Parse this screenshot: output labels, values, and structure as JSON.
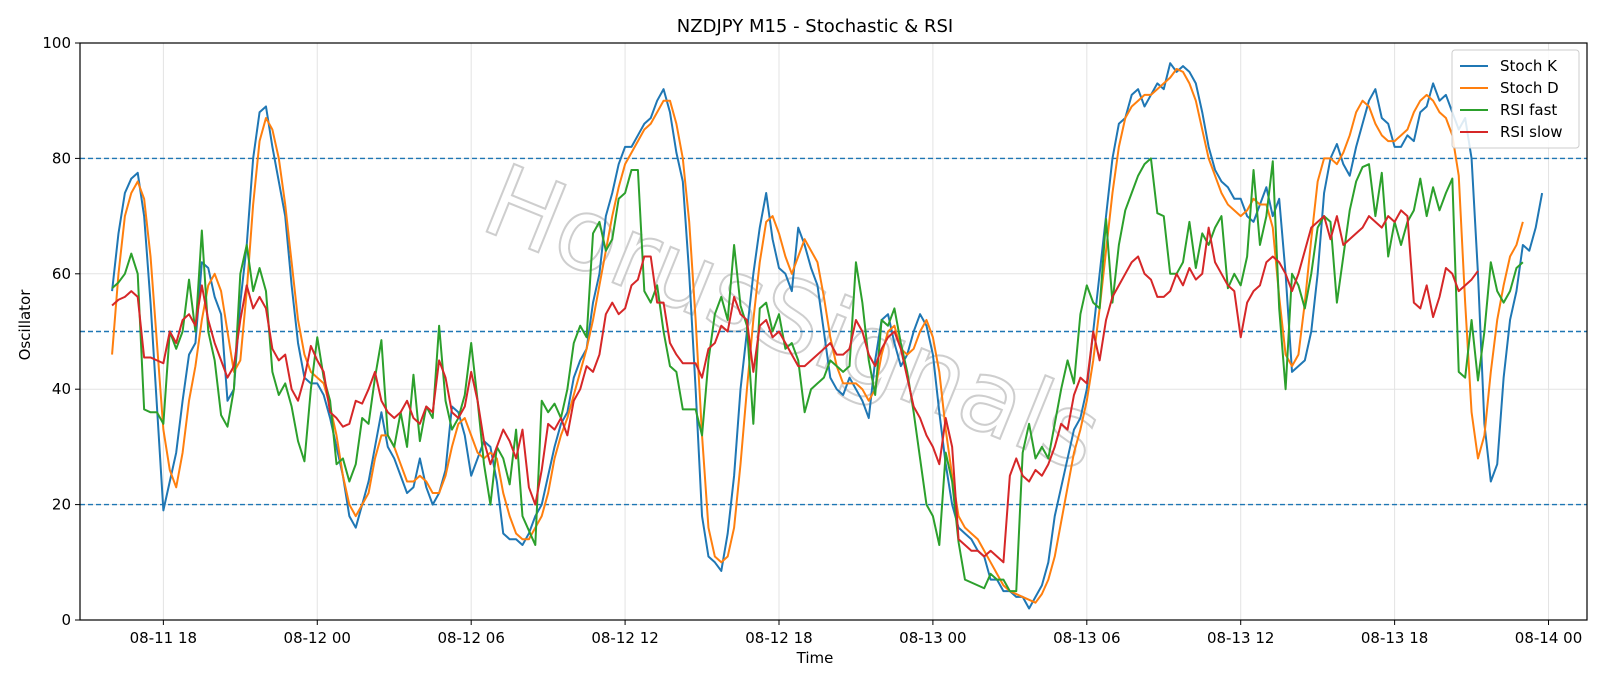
{
  "chart_data": {
    "type": "line",
    "title": "NZDJPY M15 - Stochastic & RSI",
    "xlabel": "Time",
    "ylabel": "Oscillator",
    "ylim": [
      0,
      100
    ],
    "xlim": [
      "08-11 14:45",
      "08-14 01:30"
    ],
    "yticks": [
      0,
      20,
      40,
      60,
      80,
      100
    ],
    "xticks": [
      "08-11 18",
      "08-12 00",
      "08-12 06",
      "08-12 12",
      "08-12 18",
      "08-13 00",
      "08-13 06",
      "08-13 12",
      "08-13 18",
      "08-14 00"
    ],
    "reference_lines": [
      20,
      50,
      80
    ],
    "grid": true,
    "legend_position": "top-right",
    "watermark": "HorusSignals",
    "x_start": "08-11 16:00",
    "x_step_minutes": 15,
    "series": [
      {
        "name": "Stoch K",
        "color": "#1f77b4",
        "values": [
          57,
          67,
          74,
          76.5,
          77.5,
          70,
          55,
          37,
          19,
          24,
          29,
          38,
          46,
          48,
          62,
          61,
          56,
          53,
          38,
          40,
          55,
          65,
          80,
          88,
          89,
          82,
          76,
          70,
          58,
          48,
          42,
          41,
          41,
          39,
          35,
          30,
          25,
          18,
          16,
          20,
          24,
          30,
          36,
          30,
          28,
          25,
          22,
          23,
          28,
          23,
          20,
          22,
          26,
          37,
          36,
          32,
          25,
          28,
          31,
          30,
          24,
          15,
          14,
          14,
          13,
          15,
          18,
          20,
          25,
          30,
          34,
          36,
          42,
          45,
          47,
          55,
          60,
          70,
          74,
          79,
          82,
          82,
          84,
          86,
          87,
          90,
          92,
          88,
          81,
          76,
          60,
          40,
          18,
          11,
          10,
          8.5,
          15,
          25,
          40,
          50,
          60,
          68,
          74,
          66,
          61,
          60,
          57,
          68,
          65,
          61,
          58,
          50,
          42,
          40,
          39,
          42,
          40,
          38,
          35,
          45,
          52,
          53,
          48,
          44,
          46,
          50,
          53,
          51,
          46,
          36,
          27,
          20,
          16,
          15,
          14,
          12,
          11,
          7,
          7,
          5,
          5,
          4,
          4,
          2,
          4,
          6,
          10,
          18,
          23,
          28,
          33,
          35,
          40,
          50,
          60,
          70,
          80,
          86,
          87,
          91,
          92,
          89,
          91,
          93,
          92,
          96.5,
          95,
          96,
          95,
          93,
          88,
          82,
          78,
          76,
          75,
          73,
          73,
          70,
          69,
          72,
          75,
          70,
          73,
          60,
          43,
          44,
          45,
          50,
          60,
          74,
          80,
          82.5,
          79,
          77,
          82,
          86,
          90,
          92,
          87,
          86,
          82,
          82,
          84,
          83,
          88,
          89,
          93,
          90,
          91,
          88,
          85,
          87,
          80,
          60,
          34,
          24,
          27,
          42,
          52,
          57,
          65,
          64,
          68,
          74
        ]
      },
      {
        "name": "Stoch D",
        "color": "#ff7f0e",
        "values": [
          46,
          60,
          70,
          74,
          76,
          73,
          63,
          48,
          33,
          26,
          23,
          29,
          38,
          44,
          52,
          58,
          60,
          57,
          50,
          43,
          45,
          57,
          72,
          83,
          87,
          85,
          80,
          72,
          62,
          52,
          46,
          43,
          42,
          41,
          37,
          32,
          25,
          20,
          18,
          20,
          22,
          28,
          32,
          32,
          30,
          27,
          24,
          24,
          25,
          24,
          22,
          22,
          25,
          30,
          34,
          35,
          32,
          29,
          28,
          29,
          28,
          22,
          18,
          15,
          14,
          14,
          16,
          18,
          22,
          28,
          32,
          35,
          39,
          43,
          47,
          52,
          58,
          64,
          70,
          75,
          79,
          81,
          83,
          85,
          86,
          88,
          90,
          90,
          86,
          80,
          69,
          52,
          32,
          16,
          11,
          10,
          11,
          16,
          27,
          40,
          52,
          62,
          69,
          70,
          67,
          63,
          60,
          63,
          66,
          64,
          62,
          56,
          49,
          44,
          41,
          41,
          41,
          40,
          38,
          40,
          46,
          50,
          51,
          47,
          46,
          47,
          50,
          52,
          49,
          43,
          33,
          25,
          18,
          16,
          15,
          14,
          12,
          10,
          8,
          6,
          5,
          4.5,
          4,
          3.5,
          3,
          4.5,
          7,
          11,
          17,
          23,
          29,
          33,
          38,
          45,
          54,
          64,
          74,
          82,
          87,
          89,
          90,
          91,
          91,
          92,
          93,
          94,
          95.5,
          95,
          93,
          90,
          85,
          80,
          77,
          74,
          72,
          71,
          70,
          71,
          73,
          72,
          72,
          68,
          56,
          46,
          44,
          46,
          55,
          66,
          76,
          80,
          80,
          79,
          81,
          84,
          88,
          90,
          89,
          86,
          84,
          83,
          83,
          84,
          85,
          88,
          90,
          91,
          90,
          88,
          87,
          84,
          77,
          55,
          36,
          28,
          32,
          43,
          52,
          58,
          63,
          65,
          69
        ]
      },
      {
        "name": "RSI fast",
        "color": "#2ca02c",
        "values": [
          57.5,
          58.5,
          60,
          63.5,
          60,
          36.5,
          36,
          36,
          34,
          50,
          47,
          50,
          59,
          50,
          67.5,
          50,
          45,
          35.5,
          33.5,
          40,
          60,
          65,
          57,
          61,
          57,
          43,
          39,
          41,
          37,
          31,
          27.5,
          40,
          49,
          42,
          38,
          27,
          28,
          24,
          27,
          35,
          34,
          42,
          48.5,
          32,
          30,
          36,
          30,
          42.5,
          31,
          37,
          35,
          51,
          38,
          33,
          35,
          39,
          48,
          38,
          27,
          20,
          30,
          28,
          23.5,
          33,
          18,
          15.5,
          13,
          38,
          36,
          37.5,
          35,
          40,
          48,
          51,
          49,
          67,
          69,
          64,
          66,
          73,
          74,
          78,
          78,
          57,
          55,
          58,
          50,
          44,
          43,
          36.5,
          36.5,
          36.5,
          32,
          45,
          53,
          56,
          52,
          65,
          54.5,
          51,
          34,
          54,
          55,
          50,
          53,
          47,
          48,
          45,
          36,
          40,
          41,
          42,
          45,
          44,
          43,
          44,
          62,
          55,
          45,
          39,
          52,
          51,
          54,
          48,
          43,
          36,
          28,
          20,
          18,
          13,
          29,
          24,
          13.5,
          7,
          6.5,
          6,
          5.5,
          8,
          7,
          7,
          5,
          5,
          29,
          34,
          28,
          30,
          28,
          34,
          40,
          45,
          41,
          53,
          58,
          55,
          54,
          69.5,
          55,
          65,
          71,
          74,
          77,
          79,
          80,
          70.5,
          70,
          60,
          60,
          62,
          69,
          61,
          67,
          65,
          68,
          70,
          57.5,
          60,
          58,
          63,
          78,
          65,
          70,
          79.5,
          54,
          40,
          60,
          58,
          54,
          60,
          68,
          70,
          69,
          55,
          63,
          71,
          76,
          78.5,
          79,
          70,
          77.5,
          63,
          69,
          65,
          69,
          71,
          76.5,
          70,
          75,
          71,
          74,
          76.5,
          43,
          42,
          52,
          41.5,
          50,
          62,
          57,
          55,
          57,
          61,
          62
        ]
      },
      {
        "name": "RSI slow",
        "color": "#d62728",
        "values": [
          54.5,
          55.5,
          56,
          57,
          56,
          45.5,
          45.5,
          45,
          44.5,
          50,
          48,
          52,
          53,
          51,
          58,
          52,
          48,
          45,
          42,
          44,
          52,
          58,
          54,
          56,
          54,
          47,
          45,
          46,
          40,
          38,
          42,
          47.5,
          45,
          43,
          36,
          35,
          33.5,
          34,
          38,
          37.5,
          40,
          43,
          38,
          36,
          35,
          36,
          38,
          35,
          34,
          37,
          36,
          45,
          42,
          36,
          35,
          37,
          43,
          38,
          31,
          27,
          30,
          33,
          31,
          28,
          33,
          23,
          20,
          26,
          34,
          33,
          35,
          32,
          38,
          40,
          44,
          43,
          46,
          53,
          55,
          53,
          54,
          58,
          59,
          63,
          63,
          55,
          55,
          48,
          46,
          44.5,
          44.5,
          44.5,
          42,
          47,
          48,
          51,
          50,
          56,
          53,
          52,
          43,
          51,
          52,
          49,
          50,
          48,
          46,
          44,
          44,
          45,
          46,
          47,
          48,
          46,
          46,
          47,
          52,
          50,
          46,
          44,
          47,
          49,
          50,
          47,
          42,
          37,
          35,
          32,
          30,
          27,
          35,
          30,
          14,
          13,
          12,
          12,
          11,
          12,
          11,
          10,
          25,
          28,
          25,
          24,
          26,
          25,
          27,
          30,
          34,
          33,
          39,
          42,
          41,
          50,
          45,
          52,
          56,
          58,
          60,
          62,
          63,
          60,
          59,
          56,
          56,
          57,
          60,
          58,
          61,
          59,
          60,
          68,
          62,
          60,
          58,
          57,
          49,
          55,
          57,
          58,
          62,
          63,
          62,
          60,
          57,
          60,
          64,
          68,
          69,
          70,
          66,
          70,
          65,
          66,
          67,
          68,
          70,
          69,
          68,
          70,
          69,
          71,
          70,
          55,
          54,
          58,
          52.5,
          56,
          61,
          60,
          57,
          58,
          59,
          60.5
        ]
      }
    ]
  }
}
